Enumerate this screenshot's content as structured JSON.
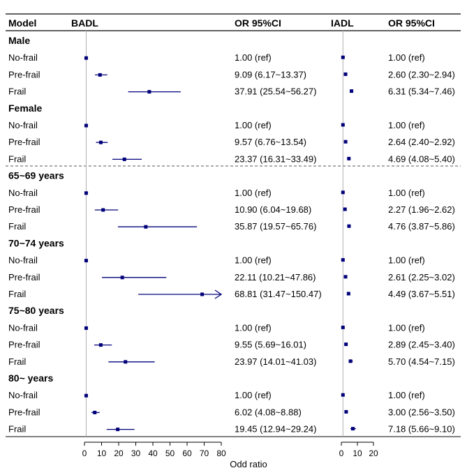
{
  "chart_data": {
    "type": "forest",
    "headers": {
      "model": "Model",
      "badl": "BADL",
      "badl_or": "OR 95%CI",
      "iadl": "IADL",
      "iadl_or": "OR 95%CI"
    },
    "xlabel": "Odd ratio",
    "badl_axis": {
      "xlim": [
        0,
        80
      ],
      "ticks": [
        "0",
        "10",
        "20",
        "30",
        "40",
        "50",
        "60",
        "70",
        "80"
      ]
    },
    "iadl_axis": {
      "xlim": [
        0,
        20
      ],
      "ticks": [
        "0",
        "10",
        "20"
      ]
    },
    "reference_value": 1,
    "colors": {
      "marker": "#00007a",
      "reference_line": "#b0b0b0",
      "separator": "#555555"
    },
    "groups": [
      {
        "title": "Male",
        "rows": [
          {
            "label": "No-frail",
            "badl": {
              "or": 1.0,
              "lo": 1.0,
              "hi": 1.0,
              "text": "1.00 (ref)"
            },
            "iadl": {
              "or": 1.0,
              "lo": 1.0,
              "hi": 1.0,
              "text": "1.00 (ref)"
            }
          },
          {
            "label": "Pre-frail",
            "badl": {
              "or": 9.09,
              "lo": 6.17,
              "hi": 13.37,
              "text": "9.09 (6.17~13.37)"
            },
            "iadl": {
              "or": 2.6,
              "lo": 2.3,
              "hi": 2.94,
              "text": "2.60 (2.30~2.94)"
            }
          },
          {
            "label": "Frail",
            "badl": {
              "or": 37.91,
              "lo": 25.54,
              "hi": 56.27,
              "text": "37.91 (25.54~56.27)"
            },
            "iadl": {
              "or": 6.31,
              "lo": 5.34,
              "hi": 7.46,
              "text": "6.31 (5.34~7.46)"
            }
          }
        ]
      },
      {
        "title": "Female",
        "rows": [
          {
            "label": "No-frail",
            "badl": {
              "or": 1.0,
              "lo": 1.0,
              "hi": 1.0,
              "text": "1.00 (ref)"
            },
            "iadl": {
              "or": 1.0,
              "lo": 1.0,
              "hi": 1.0,
              "text": "1.00 (ref)"
            }
          },
          {
            "label": "Pre-frail",
            "badl": {
              "or": 9.57,
              "lo": 6.76,
              "hi": 13.54,
              "text": "9.57 (6.76~13.54)"
            },
            "iadl": {
              "or": 2.64,
              "lo": 2.4,
              "hi": 2.92,
              "text": "2.64 (2.40~2.92)"
            }
          },
          {
            "label": "Frail",
            "badl": {
              "or": 23.37,
              "lo": 16.31,
              "hi": 33.49,
              "text": "23.37 (16.31~33.49)"
            },
            "iadl": {
              "or": 4.69,
              "lo": 4.08,
              "hi": 5.4,
              "text": "4.69 (4.08~5.40)"
            }
          }
        ]
      },
      {
        "title": "65~69 years",
        "rows": [
          {
            "label": "No-frail",
            "badl": {
              "or": 1.0,
              "lo": 1.0,
              "hi": 1.0,
              "text": "1.00 (ref)"
            },
            "iadl": {
              "or": 1.0,
              "lo": 1.0,
              "hi": 1.0,
              "text": "1.00 (ref)"
            }
          },
          {
            "label": "Pre-frail",
            "badl": {
              "or": 10.9,
              "lo": 6.04,
              "hi": 19.68,
              "text": "10.90 (6.04~19.68)"
            },
            "iadl": {
              "or": 2.27,
              "lo": 1.96,
              "hi": 2.62,
              "text": "2.27 (1.96~2.62)"
            }
          },
          {
            "label": "Frail",
            "badl": {
              "or": 35.87,
              "lo": 19.57,
              "hi": 65.76,
              "text": "35.87 (19.57~65.76)"
            },
            "iadl": {
              "or": 4.76,
              "lo": 3.87,
              "hi": 5.86,
              "text": "4.76 (3.87~5.86)"
            }
          }
        ]
      },
      {
        "title": "70~74 years",
        "rows": [
          {
            "label": "No-frail",
            "badl": {
              "or": 1.0,
              "lo": 1.0,
              "hi": 1.0,
              "text": "1.00 (ref)"
            },
            "iadl": {
              "or": 1.0,
              "lo": 1.0,
              "hi": 1.0,
              "text": "1.00 (ref)"
            }
          },
          {
            "label": "Pre-frail",
            "badl": {
              "or": 22.11,
              "lo": 10.21,
              "hi": 47.86,
              "text": "22.11 (10.21~47.86)"
            },
            "iadl": {
              "or": 2.61,
              "lo": 2.25,
              "hi": 3.02,
              "text": "2.61 (2.25~3.02)"
            }
          },
          {
            "label": "Frail",
            "badl": {
              "or": 68.81,
              "lo": 31.47,
              "hi": 150.47,
              "text": "68.81 (31.47~150.47)"
            },
            "iadl": {
              "or": 4.49,
              "lo": 3.67,
              "hi": 5.51,
              "text": "4.49 (3.67~5.51)"
            }
          }
        ]
      },
      {
        "title": "75~80 years",
        "rows": [
          {
            "label": "No-frail",
            "badl": {
              "or": 1.0,
              "lo": 1.0,
              "hi": 1.0,
              "text": "1.00 (ref)"
            },
            "iadl": {
              "or": 1.0,
              "lo": 1.0,
              "hi": 1.0,
              "text": "1.00 (ref)"
            }
          },
          {
            "label": "Pre-frail",
            "badl": {
              "or": 9.55,
              "lo": 5.69,
              "hi": 16.01,
              "text": "9.55 (5.69~16.01)"
            },
            "iadl": {
              "or": 2.89,
              "lo": 2.45,
              "hi": 3.4,
              "text": "2.89 (2.45~3.40)"
            }
          },
          {
            "label": "Frail",
            "badl": {
              "or": 23.97,
              "lo": 14.01,
              "hi": 41.03,
              "text": "23.97 (14.01~41.03)"
            },
            "iadl": {
              "or": 5.7,
              "lo": 4.54,
              "hi": 7.15,
              "text": "5.70 (4.54~7.15)"
            }
          }
        ]
      },
      {
        "title": "80~ years",
        "rows": [
          {
            "label": "No-frail",
            "badl": {
              "or": 1.0,
              "lo": 1.0,
              "hi": 1.0,
              "text": "1.00 (ref)"
            },
            "iadl": {
              "or": 1.0,
              "lo": 1.0,
              "hi": 1.0,
              "text": "1.00 (ref)"
            }
          },
          {
            "label": "Pre-frail",
            "badl": {
              "or": 6.02,
              "lo": 4.08,
              "hi": 8.88,
              "text": "6.02 (4.08~8.88)"
            },
            "iadl": {
              "or": 3.0,
              "lo": 2.56,
              "hi": 3.5,
              "text": "3.00 (2.56~3.50)"
            }
          },
          {
            "label": "Frail",
            "badl": {
              "or": 19.45,
              "lo": 12.94,
              "hi": 29.24,
              "text": "19.45 (12.94~29.24)"
            },
            "iadl": {
              "or": 7.18,
              "lo": 5.66,
              "hi": 9.1,
              "text": "7.18 (5.66~9.10)"
            }
          }
        ]
      }
    ]
  }
}
